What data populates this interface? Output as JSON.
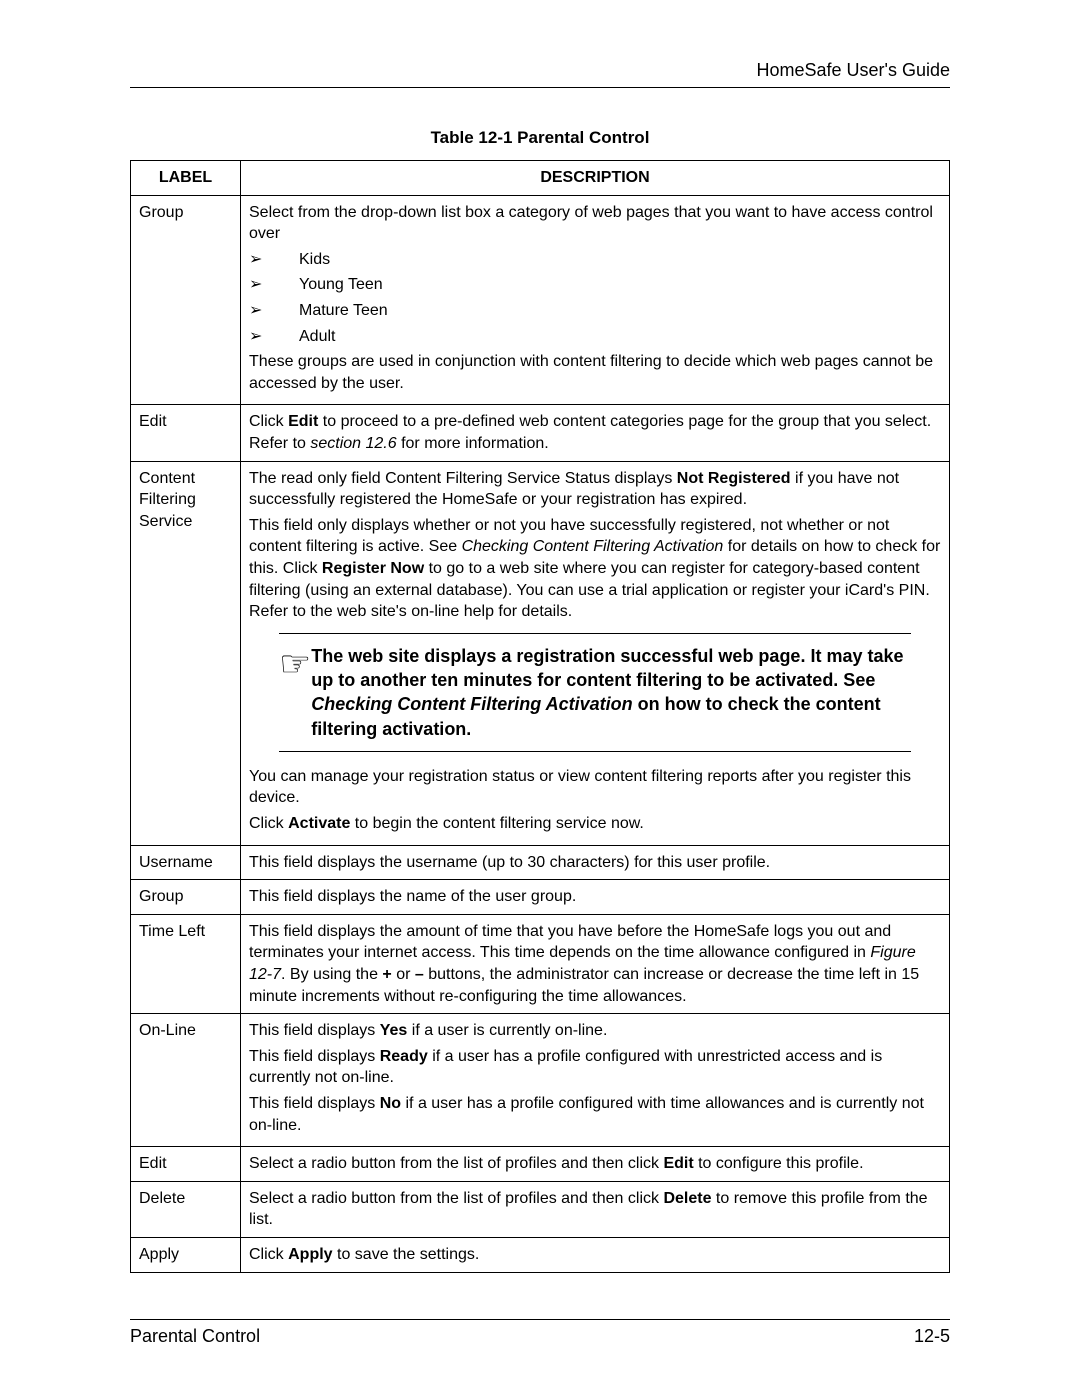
{
  "header": {
    "title": "HomeSafe User's Guide"
  },
  "table_title": "Table 12-1 Parental Control",
  "columns": {
    "label": "LABEL",
    "description": "DESCRIPTION"
  },
  "rows": {
    "group": {
      "label": "Group",
      "intro": "Select from the drop-down list box a category of web pages that you want to have access control over",
      "items": [
        "Kids",
        "Young Teen",
        "Mature Teen",
        "Adult"
      ],
      "outro": "These groups are used in conjunction with content filtering to decide which web pages cannot be accessed by the user."
    },
    "edit_group": {
      "label": "Edit",
      "p1a": "Click ",
      "p1b": "Edit",
      "p1c": " to proceed to a pre-defined web content categories page for the group that you select. Refer to ",
      "p1d": "section 12.6",
      "p1e": " for more information."
    },
    "cfs": {
      "label": "Content Filtering Service",
      "p1a": "The read only field Content Filtering Service Status displays ",
      "p1b": "Not Registered",
      "p1c": " if you have not successfully registered the HomeSafe or your registration has expired.",
      "p2a": "This field only displays whether or not you have successfully registered, not whether or not content filtering is active. See ",
      "p2b": "Checking Content Filtering Activation",
      "p2c": " for details on how to check for this. Click ",
      "p2d": "Register Now",
      "p2e": " to go to a web site where you can register for category-based content filtering (using an external database). You can use a trial application or register your iCard's PIN. Refer to the web site's on-line help for details.",
      "callout_a": "The web site displays a registration successful web page. It may take up to another ten minutes for content filtering to be activated. See ",
      "callout_b": "Checking Content Filtering Activation",
      "callout_c": " on how to check the content filtering activation.",
      "p3": "You can manage your registration status or view content filtering reports after you register this device.",
      "p4a": "Click ",
      "p4b": "Activate",
      "p4c": " to begin the content filtering service now."
    },
    "username": {
      "label": "Username",
      "desc": "This field displays the username (up to 30 characters) for this user profile."
    },
    "group2": {
      "label": "Group",
      "desc": "This field displays the name of the user group."
    },
    "timeleft": {
      "label": "Time Left",
      "p1a": "This field displays the amount of time that you have before the HomeSafe logs you out and terminates your internet access. This time depends on the time allowance configured in ",
      "p1b": "Figure 12-7",
      "p1c": ". By using the ",
      "p1d": "+",
      "p1e": " or ",
      "p1f": "–",
      "p1g": " buttons, the administrator can increase or decrease the time left in 15 minute increments without re-configuring the time allowances."
    },
    "online": {
      "label": "On-Line",
      "p1a": "This field displays ",
      "p1b": "Yes",
      "p1c": " if a user is currently on-line.",
      "p2a": "This field displays ",
      "p2b": "Ready",
      "p2c": " if a user has a profile configured with unrestricted access and is currently not on-line.",
      "p3a": "This field displays ",
      "p3b": "No",
      "p3c": " if a user has a profile configured with time allowances and is currently not on-line."
    },
    "edit_profile": {
      "label": "Edit",
      "p1a": "Select a radio button from the list of profiles and then click ",
      "p1b": "Edit",
      "p1c": " to configure this profile."
    },
    "delete": {
      "label": "Delete",
      "p1a": "Select a radio button from the list of profiles and then click ",
      "p1b": "Delete",
      "p1c": " to remove this profile from the list."
    },
    "apply": {
      "label": "Apply",
      "p1a": "Click ",
      "p1b": "Apply",
      "p1c": " to save the settings."
    }
  },
  "footer": {
    "left": "Parental Control",
    "right": "12-5"
  }
}
